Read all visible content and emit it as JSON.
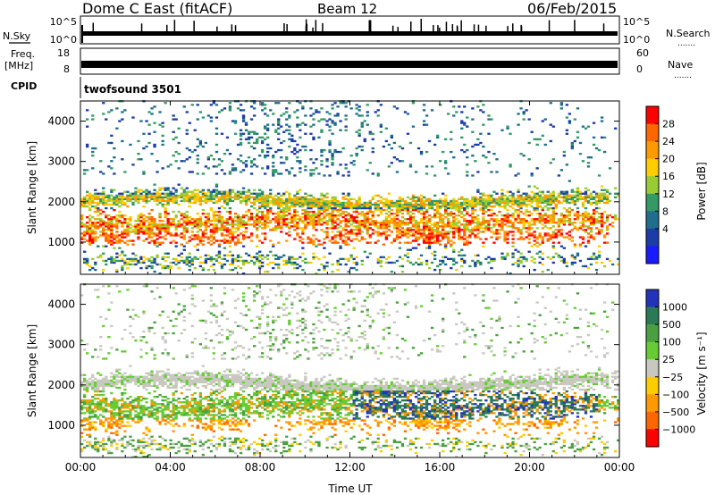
{
  "header": {
    "station": "Dome C East (fitACF)",
    "beam": "Beam 12",
    "date": "06/Feb/2015"
  },
  "left_labels": {
    "nsky": "N.Sky",
    "freq_line1": "Freq.",
    "freq_line2": "[MHz]",
    "cpid": "CPID"
  },
  "right_labels": {
    "nsearch": "N.Search",
    "nave": "Nave",
    "dots": "......."
  },
  "cpid_name": "twofsound 3501",
  "noise_axis": {
    "left_ticks": [
      "10^5",
      "10^0"
    ],
    "right_ticks": [
      "10^5",
      "10^0"
    ]
  },
  "freq_axis": {
    "left_ticks": [
      "18",
      "8"
    ],
    "right_ticks": [
      "60",
      "0"
    ]
  },
  "chart_data": [
    {
      "type": "heatmap",
      "name": "power",
      "xlabel": "",
      "ylabel": "Slant Range [km]",
      "xlim": [
        0,
        24
      ],
      "ylim": [
        200,
        4500
      ],
      "x_ticks": [
        0,
        4,
        8,
        12,
        16,
        20,
        24
      ],
      "y_ticks": [
        1000,
        2000,
        3000,
        4000
      ],
      "colorbar": {
        "label": "Power [dB]",
        "ticks": [
          "28",
          "24",
          "20",
          "16",
          "12",
          "8",
          "4"
        ],
        "colors": [
          "#ff0000",
          "#ff6600",
          "#ff9900",
          "#ffcc00",
          "#99cc33",
          "#339966",
          "#1e6e8c",
          "#1c3ca8",
          "#1a1aff"
        ]
      }
    },
    {
      "type": "heatmap",
      "name": "velocity",
      "xlabel": "Time UT",
      "ylabel": "Slant Range [km]",
      "xlim": [
        0,
        24
      ],
      "ylim": [
        200,
        4500
      ],
      "x_ticks": [
        0,
        4,
        8,
        12,
        16,
        20,
        24
      ],
      "x_tick_labels": [
        "00:00",
        "04:00",
        "08:00",
        "12:00",
        "16:00",
        "20:00",
        "00:00"
      ],
      "y_ticks": [
        1000,
        2000,
        3000,
        4000
      ],
      "colorbar": {
        "label": "Velocity [m s⁻¹]",
        "ticks": [
          "1000",
          "500",
          "100",
          "25",
          "−25",
          "−100",
          "−500",
          "−1000"
        ],
        "colors": [
          "#2233bb",
          "#2a7a55",
          "#4aa040",
          "#66cc33",
          "#c8c8c0",
          "#ffcc00",
          "#ff9900",
          "#ff6600",
          "#ff0000"
        ]
      }
    }
  ]
}
